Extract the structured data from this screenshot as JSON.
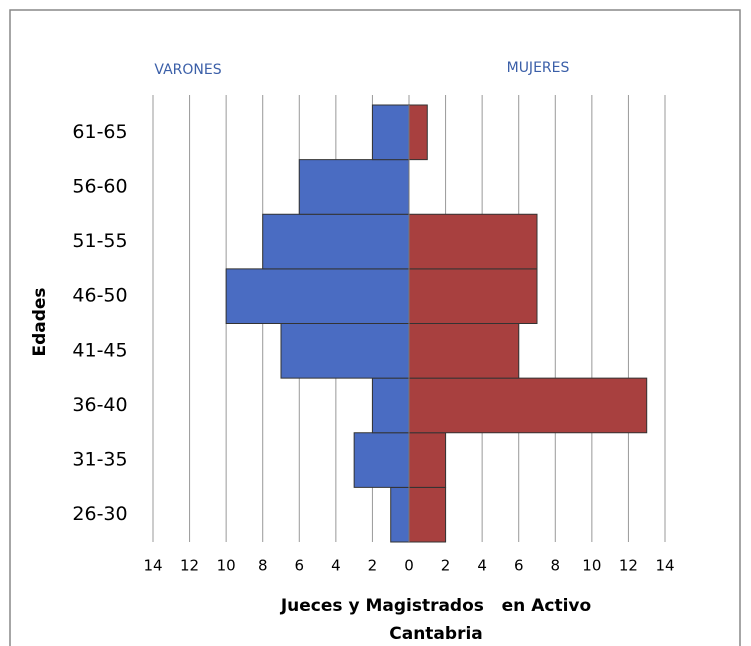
{
  "chart_data": {
    "type": "pyramid",
    "categories": [
      "26-30",
      "31-35",
      "36-40",
      "41-45",
      "46-50",
      "51-55",
      "56-60",
      "61-65"
    ],
    "series": [
      {
        "name": "VARONES",
        "color": "#4a6cc2",
        "values": [
          -1,
          -3,
          -2,
          -7,
          -10,
          -8,
          -6,
          -2
        ]
      },
      {
        "name": "MUJERES",
        "color": "#a8403f",
        "values": [
          2,
          2,
          13,
          6,
          7,
          7,
          0,
          1
        ]
      }
    ],
    "x_label": [
      "Jueces y Magistrados   en Activo",
      "Cantabria"
    ],
    "y_label": "Edades",
    "xlim": [
      -14,
      14
    ],
    "xticks": [
      {
        "value": -14,
        "label": "14"
      },
      {
        "value": -12,
        "label": "12"
      },
      {
        "value": -10,
        "label": "10"
      },
      {
        "value": -8,
        "label": "8"
      },
      {
        "value": -6,
        "label": "6"
      },
      {
        "value": -4,
        "label": "4"
      },
      {
        "value": -2,
        "label": "2"
      },
      0,
      2,
      4,
      6,
      8,
      10,
      12,
      14
    ],
    "grid": true
  }
}
